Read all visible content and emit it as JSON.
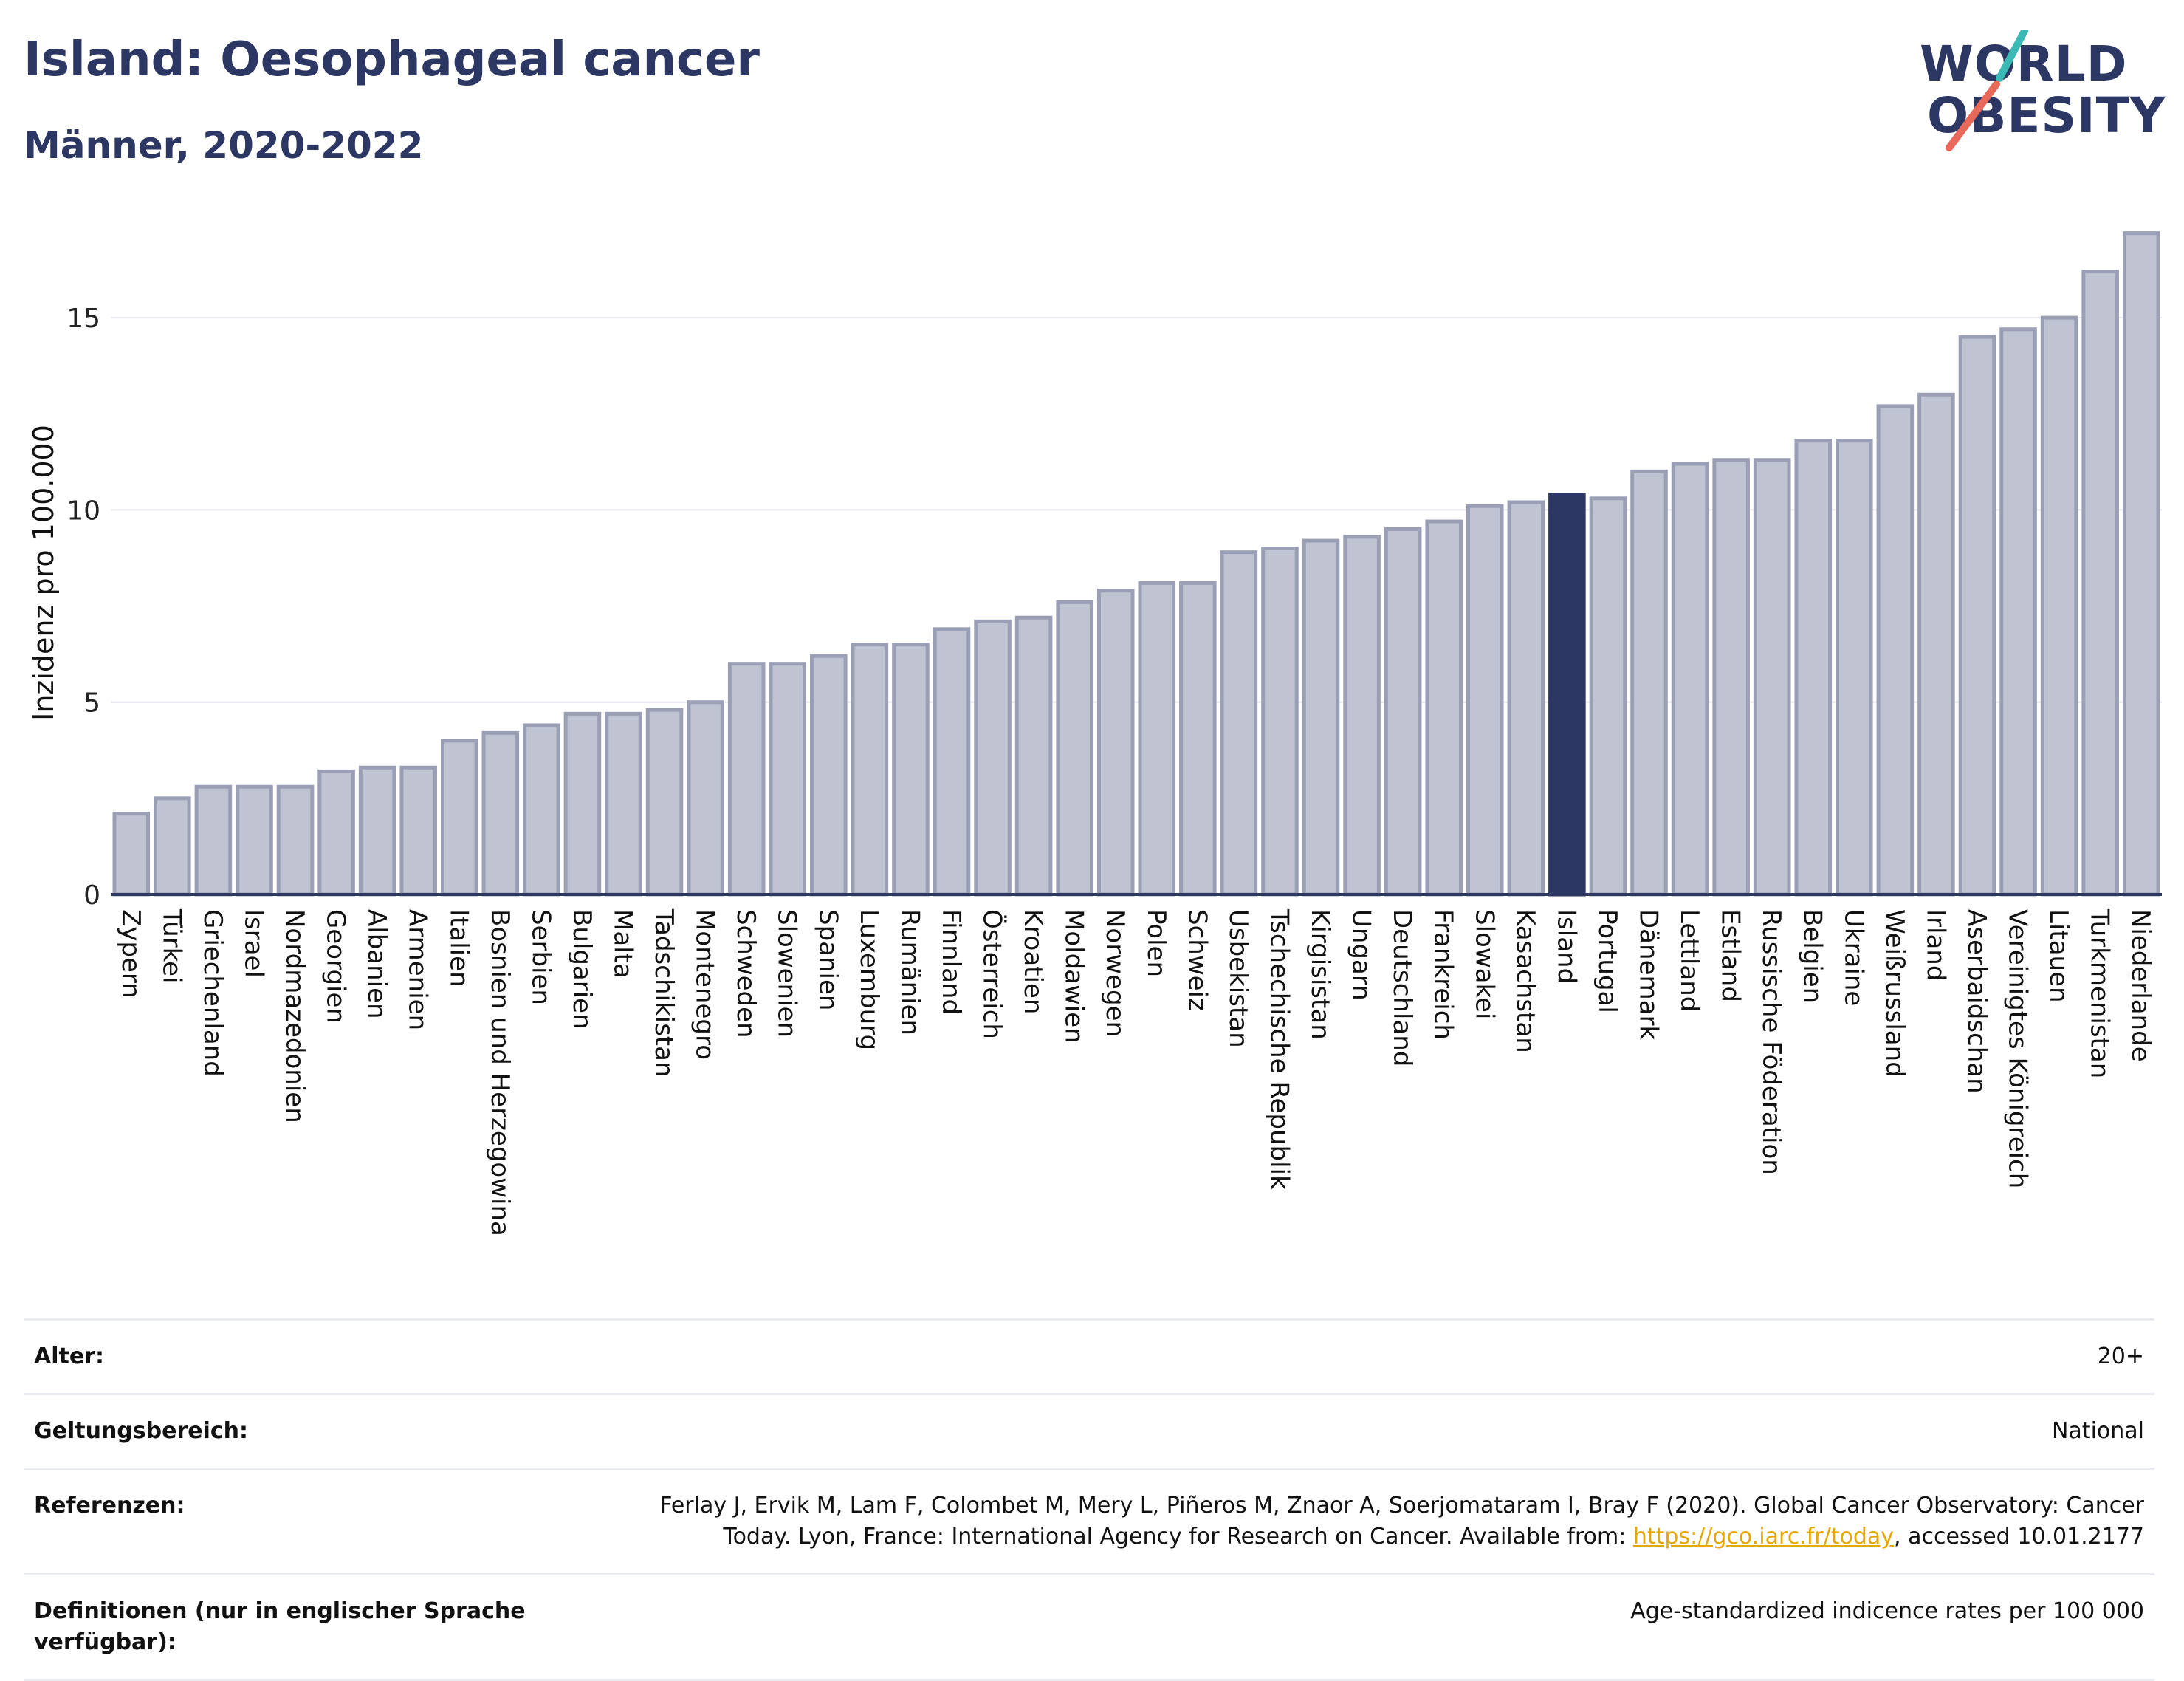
{
  "header": {
    "title": "Island: Oesophageal cancer",
    "subtitle": "Männer, 2020-2022"
  },
  "logo": {
    "line1": "WORLD",
    "line2": "OBESITY",
    "accent_teal": "#3ab9b5",
    "accent_coral": "#e8685a"
  },
  "colors": {
    "bar": "#bfc3d2",
    "bar_edge": "#9a9fb6",
    "highlight": "#2c3763",
    "grid": "#e6e8ee",
    "axis": "#2c3763"
  },
  "chart_data": {
    "type": "bar",
    "ylabel": "Inzidenz pro 100.000",
    "ylim": [
      0,
      17.5
    ],
    "yticks": [
      0,
      5,
      10,
      15
    ],
    "highlight": "Island",
    "categories": [
      "Zypern",
      "Türkei",
      "Griechenland",
      "Israel",
      "Nordmazedonien",
      "Georgien",
      "Albanien",
      "Armenien",
      "Italien",
      "Bosnien und Herzegowina",
      "Serbien",
      "Bulgarien",
      "Malta",
      "Tadschikistan",
      "Montenegro",
      "Schweden",
      "Slowenien",
      "Spanien",
      "Luxemburg",
      "Rumänien",
      "Finnland",
      "Österreich",
      "Kroatien",
      "Moldawien",
      "Norwegen",
      "Polen",
      "Schweiz",
      "Usbekistan",
      "Tschechische Republik",
      "Kirgisistan",
      "Ungarn",
      "Deutschland",
      "Frankreich",
      "Slowakei",
      "Kasachstan",
      "Island",
      "Portugal",
      "Dänemark",
      "Lettland",
      "Estland",
      "Russische Föderation",
      "Belgien",
      "Ukraine",
      "Weißrussland",
      "Irland",
      "Aserbaidschan",
      "Vereinigtes Königreich",
      "Litauen",
      "Turkmenistan",
      "Niederlande"
    ],
    "values": [
      2.1,
      2.5,
      2.8,
      2.8,
      2.8,
      3.2,
      3.3,
      3.3,
      4.0,
      4.2,
      4.4,
      4.7,
      4.7,
      4.8,
      5.0,
      6.0,
      6.0,
      6.2,
      6.5,
      6.5,
      6.9,
      7.1,
      7.2,
      7.6,
      7.9,
      8.1,
      8.1,
      8.9,
      9.0,
      9.2,
      9.3,
      9.5,
      9.7,
      10.1,
      10.2,
      10.4,
      10.3,
      11.0,
      11.2,
      11.3,
      11.3,
      11.8,
      11.8,
      12.7,
      13.0,
      14.5,
      14.7,
      15.0,
      16.2,
      17.2
    ]
  },
  "info": {
    "rows": [
      {
        "key": "Alter:",
        "value": "20+"
      },
      {
        "key": "Geltungsbereich:",
        "value": "National"
      }
    ],
    "references": {
      "key": "Referenzen:",
      "text_before": "Ferlay J, Ervik M, Lam F, Colombet M, Mery L, Piñeros M, Znaor A, Soerjomataram I, Bray F (2020). Global Cancer Observatory: Cancer Today. Lyon, France: International Agency for Research on Cancer. Available from: ",
      "link": "https://gco.iarc.fr/today",
      "text_after": ", accessed 10.01.2177"
    },
    "definitions": {
      "key": "Definitionen (nur in englischer Sprache verfügbar):",
      "value": "Age-standardized indicence rates per 100 000"
    }
  }
}
